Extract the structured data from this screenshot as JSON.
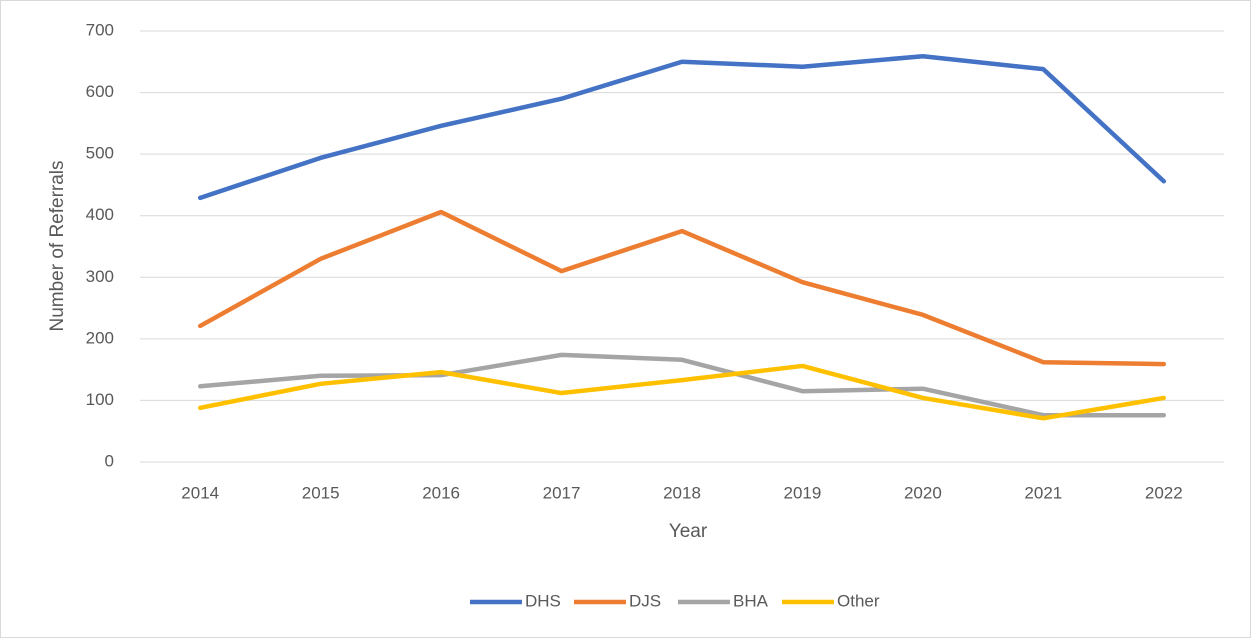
{
  "chart_data": {
    "type": "line",
    "x_label": "Year",
    "y_label": "Number of Referrals",
    "categories": [
      "2014",
      "2015",
      "2016",
      "2017",
      "2018",
      "2019",
      "2020",
      "2021",
      "2022"
    ],
    "series": [
      {
        "name": "DHS",
        "color": "#4472c4",
        "values": [
          429,
          494,
          546,
          590,
          650,
          642,
          659,
          638,
          456
        ]
      },
      {
        "name": "DJS",
        "color": "#ed7d31",
        "values": [
          221,
          330,
          406,
          310,
          375,
          292,
          239,
          162,
          159
        ]
      },
      {
        "name": "BHA",
        "color": "#a5a5a5",
        "values": [
          123,
          140,
          141,
          174,
          166,
          115,
          119,
          76,
          76
        ]
      },
      {
        "name": "Other",
        "color": "#ffc000",
        "values": [
          88,
          127,
          146,
          112,
          133,
          156,
          104,
          71,
          104
        ]
      }
    ],
    "ylim": [
      0,
      700
    ],
    "yticks": [
      0,
      100,
      200,
      300,
      400,
      500,
      600,
      700
    ],
    "grid": true,
    "legend": "bottom"
  }
}
